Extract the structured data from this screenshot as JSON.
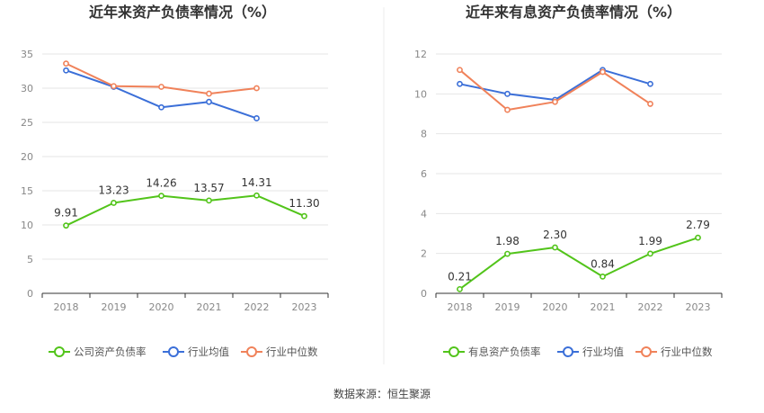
{
  "footer": {
    "source": "数据来源：恒生聚源"
  },
  "chart_data": [
    {
      "type": "line",
      "title": "近年来资产负债率情况（%）",
      "categories": [
        "2018",
        "2019",
        "2020",
        "2021",
        "2022",
        "2023"
      ],
      "ylim": [
        0,
        35
      ],
      "yticks": [
        0,
        5,
        10,
        15,
        20,
        25,
        30,
        35
      ],
      "grid": true,
      "legend": "bottom",
      "series": [
        {
          "name": "公司资产负债率",
          "color": "#52c41a",
          "labels": true,
          "values": [
            9.91,
            13.23,
            14.26,
            13.57,
            14.31,
            11.3
          ],
          "value_labels": [
            "9.91",
            "13.23",
            "14.26",
            "13.57",
            "14.31",
            "11.30"
          ]
        },
        {
          "name": "行业均值",
          "color": "#3b6fd8",
          "labels": false,
          "values": [
            32.6,
            30.2,
            27.2,
            28.0,
            25.6,
            null
          ]
        },
        {
          "name": "行业中位数",
          "color": "#f0825a",
          "labels": false,
          "values": [
            33.6,
            30.3,
            30.2,
            29.2,
            30.0,
            null
          ]
        }
      ]
    },
    {
      "type": "line",
      "title": "近年来有息资产负债率情况（%）",
      "categories": [
        "2018",
        "2019",
        "2020",
        "2021",
        "2022",
        "2023"
      ],
      "ylim": [
        0,
        12
      ],
      "yticks": [
        0,
        2,
        4,
        6,
        8,
        10,
        12
      ],
      "grid": true,
      "legend": "bottom",
      "series": [
        {
          "name": "有息资产负债率",
          "color": "#52c41a",
          "labels": true,
          "values": [
            0.21,
            1.98,
            2.3,
            0.84,
            1.99,
            2.79
          ],
          "value_labels": [
            "0.21",
            "1.98",
            "2.30",
            "0.84",
            "1.99",
            "2.79"
          ]
        },
        {
          "name": "行业均值",
          "color": "#3b6fd8",
          "labels": false,
          "values": [
            10.5,
            10.0,
            9.7,
            11.2,
            10.5,
            null
          ]
        },
        {
          "name": "行业中位数",
          "color": "#f0825a",
          "labels": false,
          "values": [
            11.2,
            9.2,
            9.6,
            11.1,
            9.5,
            null
          ]
        }
      ]
    }
  ]
}
